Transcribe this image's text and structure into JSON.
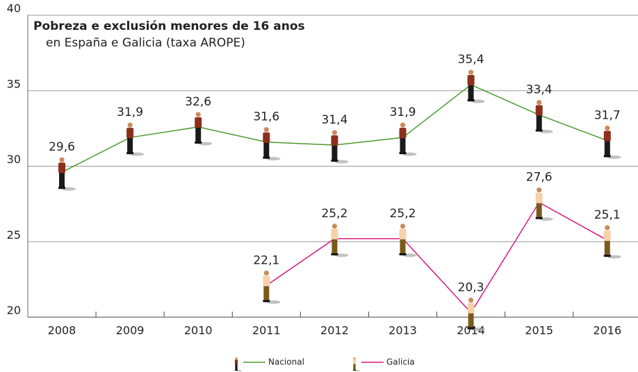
{
  "chart_data": {
    "type": "line",
    "title": "Pobreza e exclusión menores de 16 anos",
    "subtitle": "en España e Galicia (taxa AROPE)",
    "categories": [
      "2008",
      "2009",
      "2010",
      "2011",
      "2012",
      "2013",
      "2014",
      "2015",
      "2016"
    ],
    "series": [
      {
        "name": "Nacional",
        "color": "#4a9a2e",
        "shirt": "#8e2f1e",
        "pants": "#1a1a1a",
        "values": [
          29.6,
          31.9,
          32.6,
          31.6,
          31.4,
          31.9,
          35.4,
          33.4,
          31.7
        ],
        "value_labels": [
          "29,6",
          "31,9",
          "32,6",
          "31,6",
          "31,4",
          "31,9",
          "35,4",
          "33,4",
          "31,7"
        ]
      },
      {
        "name": "Galicia",
        "color": "#d6177f",
        "shirt": "#f6d2ab",
        "pants": "#7a5a1c",
        "values": [
          null,
          null,
          null,
          22.1,
          25.2,
          25.2,
          20.3,
          27.6,
          25.1
        ],
        "value_labels": [
          null,
          null,
          null,
          "22,1",
          "25,2",
          "25,2",
          "20,3",
          "27,6",
          "25,1"
        ]
      }
    ],
    "ylim": [
      20,
      40
    ],
    "yticks": [
      20,
      25,
      30,
      35,
      40
    ],
    "grid": true
  }
}
